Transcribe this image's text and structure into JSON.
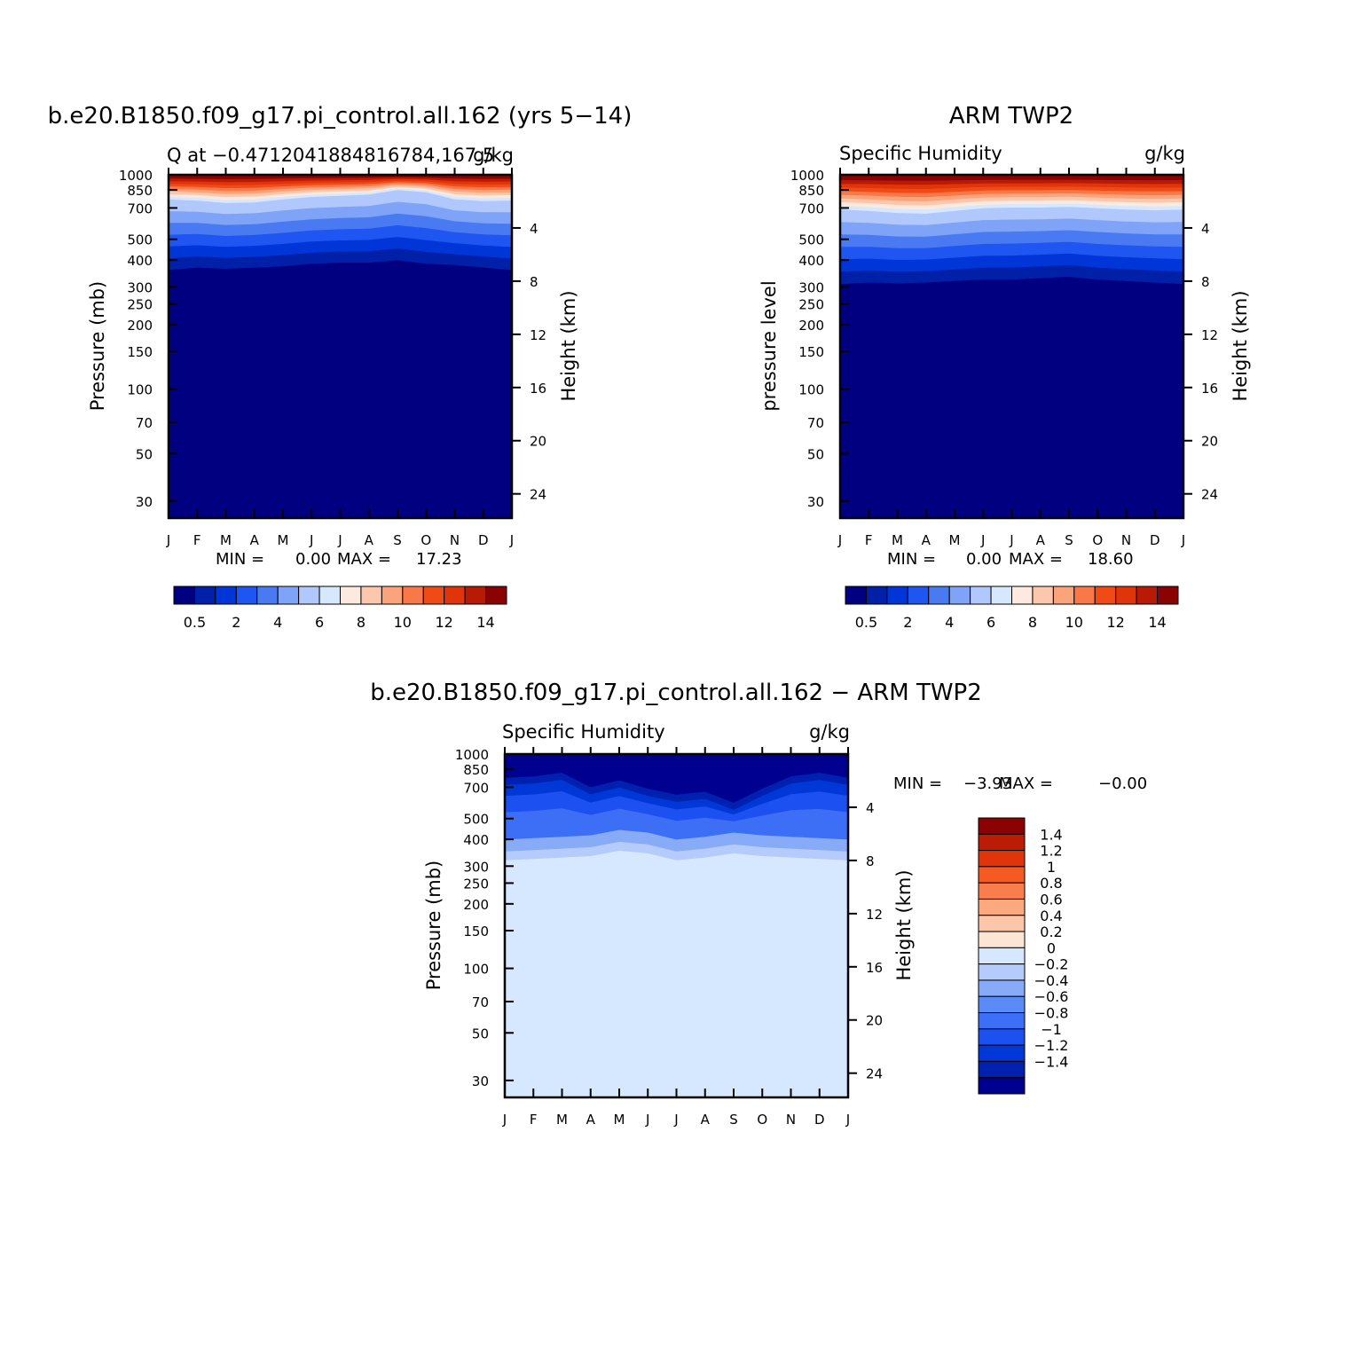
{
  "colors": {
    "abs_levels": [
      "#000080",
      "#0020a8",
      "#0035d8",
      "#1f55f0",
      "#4a7af2",
      "#7ea3f7",
      "#b0c8fb",
      "#d6e8ff",
      "#fde9dd",
      "#fdc7ad",
      "#fba47c",
      "#f97849",
      "#f04a16",
      "#e0340a",
      "#b81a05",
      "#8a0202"
    ],
    "diff_levels": [
      "#000090",
      "#0020b0",
      "#0038d8",
      "#1c50f0",
      "#3c6ff5",
      "#5a8bf6",
      "#88abf8",
      "#b4cbfb",
      "#d6e8ff",
      "#fde5d4",
      "#fdc6a8",
      "#fba97e",
      "#f97e4d",
      "#f55a22",
      "#e0340a",
      "#ba1c05",
      "#8c0202"
    ]
  },
  "chart_data": [
    {
      "type": "heatmap",
      "title": "b.e20.B1850.f09_g17.pi_control.all.162 (yrs 5−14)",
      "subtitle_left": "Q at −0.4712041884816784,167.5",
      "subtitle_right": "g/kg",
      "ylabel": "Pressure (mb)",
      "ylabel_right": "Height (km)",
      "x": [
        "J",
        "F",
        "M",
        "A",
        "M",
        "J",
        "J",
        "A",
        "S",
        "O",
        "N",
        "D",
        "J"
      ],
      "y_ticks": [
        "30",
        "50",
        "70",
        "100",
        "150",
        "200",
        "250",
        "300",
        "400",
        "500",
        "700",
        "850",
        "1000"
      ],
      "y_right_ticks": [
        "24",
        "20",
        "16",
        "12",
        "8",
        "4"
      ],
      "y_scale": "log pressure",
      "ylim": [
        1000,
        25
      ],
      "stats": {
        "min_label": "MIN =",
        "min": "0.00",
        "max_label": "MAX =",
        "max": "17.23"
      },
      "colorbar": {
        "orientation": "horizontal",
        "labels": [
          "0.5",
          "2",
          "4",
          "6",
          "8",
          "10",
          "12",
          "14"
        ]
      },
      "moisture_top_hpa": [
        360,
        370,
        365,
        370,
        375,
        385,
        390,
        390,
        400,
        385,
        380,
        370,
        360
      ],
      "humid_layer_hpa": [
        770,
        760,
        740,
        745,
        770,
        790,
        800,
        810,
        850,
        830,
        770,
        755,
        760
      ]
    },
    {
      "type": "heatmap",
      "title": "ARM TWP2",
      "subtitle_left": "Specific Humidity",
      "subtitle_right": "g/kg",
      "ylabel": "pressure level",
      "ylabel_right": "Height (km)",
      "x": [
        "J",
        "F",
        "M",
        "A",
        "M",
        "J",
        "J",
        "A",
        "S",
        "O",
        "N",
        "D",
        "J"
      ],
      "y_ticks": [
        "30",
        "50",
        "70",
        "100",
        "150",
        "200",
        "250",
        "300",
        "400",
        "500",
        "700",
        "850",
        "1000"
      ],
      "y_right_ticks": [
        "24",
        "20",
        "16",
        "12",
        "8",
        "4"
      ],
      "y_scale": "log pressure",
      "ylim": [
        1000,
        25
      ],
      "stats": {
        "min_label": "MIN =",
        "min": "0.00",
        "max_label": "MAX =",
        "max": "18.60"
      },
      "colorbar": {
        "orientation": "horizontal",
        "labels": [
          "0.5",
          "2",
          "4",
          "6",
          "8",
          "10",
          "12",
          "14"
        ]
      },
      "moisture_top_hpa": [
        310,
        315,
        312,
        315,
        320,
        325,
        325,
        330,
        335,
        325,
        320,
        315,
        310
      ],
      "humid_layer_hpa": [
        690,
        680,
        665,
        660,
        680,
        700,
        705,
        705,
        710,
        700,
        690,
        685,
        690
      ]
    },
    {
      "type": "heatmap",
      "title": "b.e20.B1850.f09_g17.pi_control.all.162 − ARM TWP2",
      "subtitle_left": "Specific Humidity",
      "subtitle_right": "g/kg",
      "ylabel": "Pressure (mb)",
      "ylabel_right": "Height (km)",
      "x": [
        "J",
        "F",
        "M",
        "A",
        "M",
        "J",
        "J",
        "A",
        "S",
        "O",
        "N",
        "D",
        "J"
      ],
      "y_ticks": [
        "30",
        "50",
        "70",
        "100",
        "150",
        "200",
        "250",
        "300",
        "400",
        "500",
        "700",
        "850",
        "1000"
      ],
      "y_right_ticks": [
        "24",
        "20",
        "16",
        "12",
        "8",
        "4"
      ],
      "y_scale": "log pressure",
      "ylim": [
        1000,
        25
      ],
      "stats": {
        "min_label": "MIN =",
        "min": "−3.93",
        "max_label": "MAX =",
        "max": "−0.00"
      },
      "colorbar": {
        "orientation": "vertical",
        "labels": [
          "1.4",
          "1.2",
          "1",
          "0.8",
          "0.6",
          "0.4",
          "0.2",
          "0",
          "−0.2",
          "−0.4",
          "−0.6",
          "−0.8",
          "−1",
          "−1.2",
          "−1.4"
        ]
      },
      "anomaly_top_hpa": [
        320,
        325,
        330,
        335,
        355,
        345,
        320,
        330,
        345,
        335,
        330,
        325,
        320
      ],
      "strong_dry_top_hpa": [
        720,
        730,
        760,
        650,
        700,
        640,
        600,
        620,
        550,
        640,
        730,
        760,
        720
      ]
    }
  ]
}
